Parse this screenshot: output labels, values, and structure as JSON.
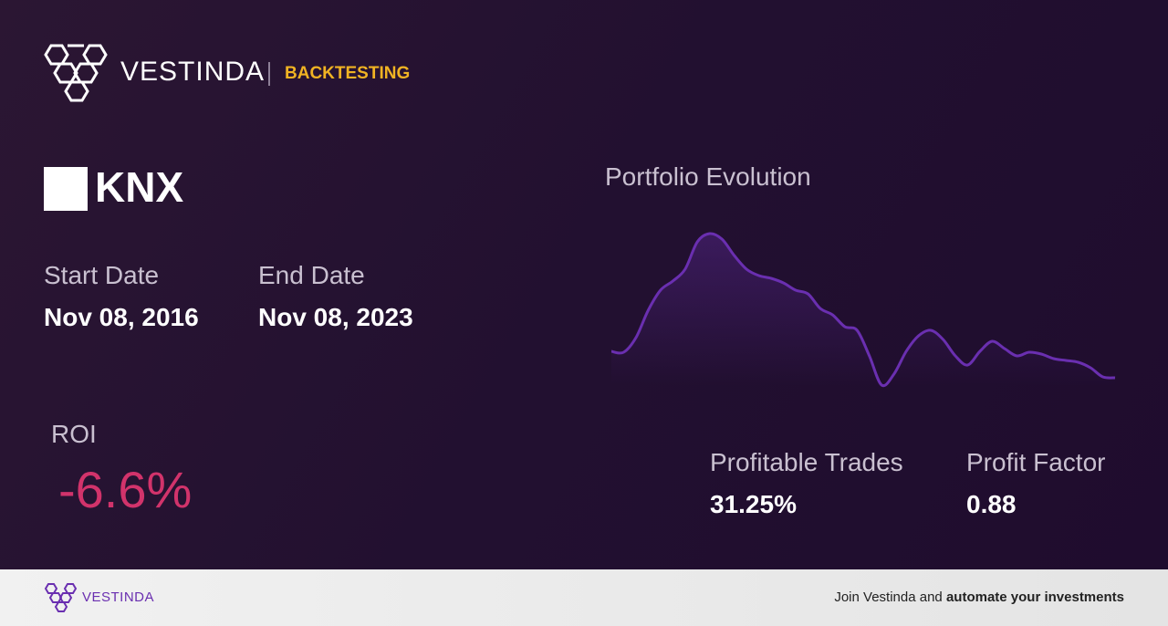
{
  "header": {
    "brand": "VESTINDA",
    "section": "BACKTESTING"
  },
  "ticker": "KNX",
  "start_date": {
    "label": "Start Date",
    "value": "Nov 08, 2016"
  },
  "end_date": {
    "label": "End Date",
    "value": "Nov 08, 2023"
  },
  "roi": {
    "label": "ROI",
    "value": "-6.6%"
  },
  "profitable_trades": {
    "label": "Profitable Trades",
    "value": "31.25%"
  },
  "profit_factor": {
    "label": "Profit Factor",
    "value": "0.88"
  },
  "chart_data": {
    "type": "line",
    "title": "Portfolio Evolution",
    "color": "#6a2fb0",
    "values": [
      65,
      64,
      80,
      110,
      132,
      142,
      155,
      185,
      194,
      188,
      170,
      155,
      148,
      145,
      140,
      132,
      128,
      112,
      105,
      92,
      88,
      60,
      28,
      40,
      65,
      82,
      88,
      78,
      60,
      50,
      65,
      76,
      68,
      60,
      64,
      62,
      57,
      55,
      53,
      47,
      37,
      36
    ]
  },
  "footer": {
    "brand": "VESTINDA",
    "text": "Join Vestinda and",
    "bold": "automate your investments"
  }
}
